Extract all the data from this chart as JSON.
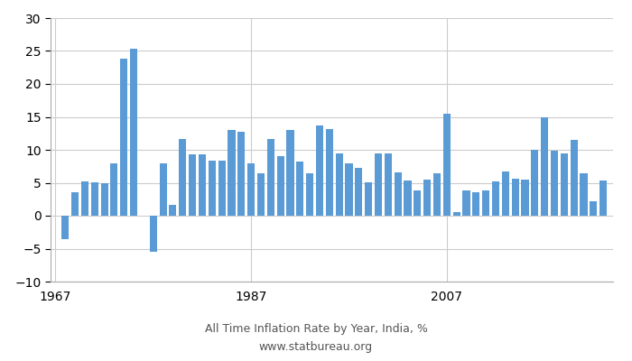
{
  "years": [
    1967,
    1968,
    1969,
    1970,
    1971,
    1972,
    1973,
    1974,
    1975,
    1976,
    1977,
    1978,
    1979,
    1980,
    1981,
    1982,
    1983,
    1984,
    1985,
    1986,
    1987,
    1988,
    1989,
    1990,
    1991,
    1992,
    1993,
    1994,
    1995,
    1996,
    1997,
    1998,
    1999,
    2000,
    2001,
    2002,
    2003,
    2004,
    2005,
    2006,
    2007,
    2008,
    2009,
    2010,
    2011,
    2012,
    2013,
    2014,
    2015,
    2016,
    2017,
    2018,
    2019,
    2020,
    2021,
    2022,
    2023
  ],
  "values": [
    0.0,
    -3.6,
    3.6,
    5.2,
    5.1,
    5.0,
    8.0,
    23.9,
    25.3,
    0.0,
    -5.5,
    8.0,
    1.6,
    11.7,
    9.3,
    9.3,
    8.3,
    8.3,
    13.0,
    12.7,
    8.0,
    6.5,
    11.7,
    9.0,
    13.0,
    8.2,
    6.5,
    13.7,
    13.2,
    9.5,
    8.0,
    7.2,
    5.1,
    9.5,
    9.5,
    6.6,
    5.3,
    3.9,
    5.5,
    6.5,
    15.5,
    0.5,
    3.8,
    3.5,
    3.9,
    5.2,
    6.7,
    5.6,
    5.5,
    10.0,
    15.0,
    9.8,
    9.5,
    11.5,
    6.5,
    2.2,
    5.3
  ],
  "bar_color": "#5b9bd5",
  "title_line1": "All Time Inflation Rate by Year, India, %",
  "title_line2": "www.statbureau.org",
  "xlim_min": 1966.5,
  "xlim_max": 2024.0,
  "ylim_min": -10,
  "ylim_max": 30,
  "yticks": [
    -10,
    -5,
    0,
    5,
    10,
    15,
    20,
    25,
    30
  ],
  "xtick_positions": [
    1967,
    1987,
    2007
  ],
  "grid_color": "#cccccc",
  "background_color": "#ffffff"
}
